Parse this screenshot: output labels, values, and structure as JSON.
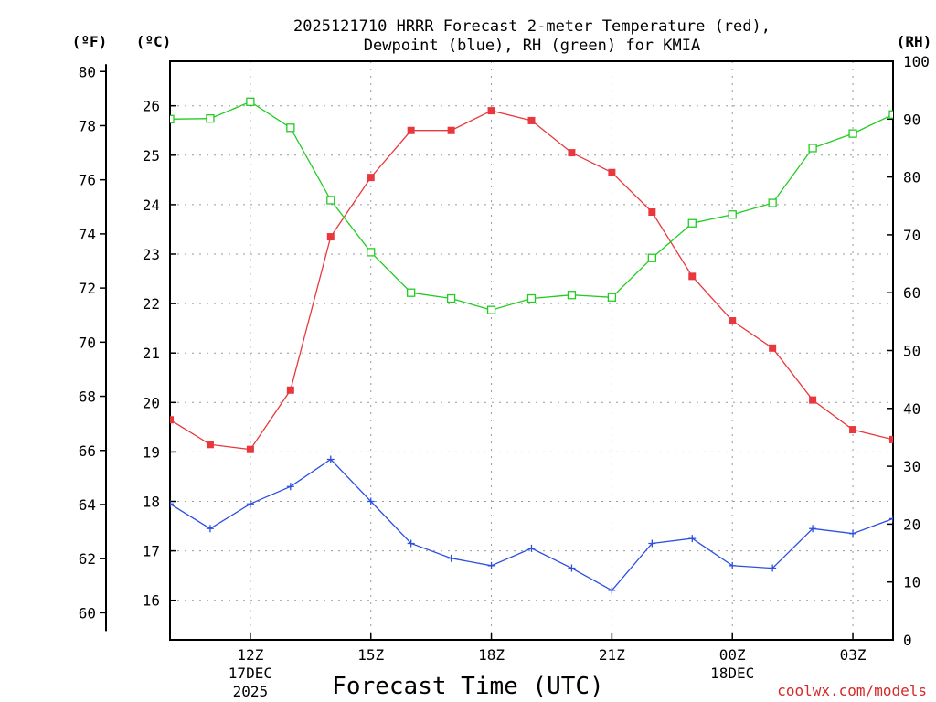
{
  "chart_data": {
    "type": "line",
    "title_line1": "2025121710 HRRR Forecast 2-meter Temperature (red),",
    "title_line2": "Dewpoint (blue), RH (green) for KMIA",
    "xlabel": "Forecast Time (UTC)",
    "credit": "coolwx.com/models",
    "credit_color": "#d42a2a",
    "x_hours_utc": [
      10,
      11,
      12,
      13,
      14,
      15,
      16,
      17,
      18,
      19,
      20,
      21,
      22,
      23,
      24,
      25,
      26,
      27,
      28
    ],
    "x_range": [
      10,
      28
    ],
    "x_ticks": [
      {
        "x": 12,
        "label": "12Z",
        "sub1": "17DEC",
        "sub2": "2025"
      },
      {
        "x": 15,
        "label": "15Z",
        "sub1": "",
        "sub2": ""
      },
      {
        "x": 18,
        "label": "18Z",
        "sub1": "",
        "sub2": ""
      },
      {
        "x": 21,
        "label": "21Z",
        "sub1": "",
        "sub2": ""
      },
      {
        "x": 24,
        "label": "00Z",
        "sub1": "18DEC",
        "sub2": ""
      },
      {
        "x": 27,
        "label": "03Z",
        "sub1": "",
        "sub2": ""
      }
    ],
    "left_outer_axis": {
      "unit_label": "(ºF)",
      "ylim": [
        59.0,
        80.38
      ],
      "ticks": [
        "60",
        "62",
        "64",
        "66",
        "68",
        "70",
        "72",
        "74",
        "76",
        "78",
        "80"
      ]
    },
    "left_inner_axis": {
      "unit_label": "(ºC)",
      "ylim": [
        15.2,
        26.9
      ],
      "ticks": [
        "16",
        "17",
        "18",
        "19",
        "20",
        "21",
        "22",
        "23",
        "24",
        "25",
        "26"
      ]
    },
    "right_axis": {
      "unit_label": "(RH)",
      "ylim": [
        0,
        100
      ],
      "ticks": [
        "0",
        "10",
        "20",
        "30",
        "40",
        "50",
        "60",
        "70",
        "80",
        "90",
        "100"
      ]
    },
    "series": [
      {
        "name": "2-meter Temperature",
        "unit": "C",
        "axis": "left_inner",
        "color": "#e8383d",
        "marker": "filled-square",
        "values": [
          19.65,
          19.15,
          19.05,
          20.25,
          23.35,
          24.55,
          25.5,
          25.5,
          25.9,
          25.7,
          25.05,
          24.65,
          23.85,
          22.55,
          21.65,
          21.1,
          20.05,
          19.45,
          19.25
        ]
      },
      {
        "name": "Dewpoint",
        "unit": "C",
        "axis": "left_inner",
        "color": "#2c4fe0",
        "marker": "plus",
        "values": [
          17.95,
          17.45,
          17.95,
          18.3,
          18.85,
          18.0,
          17.15,
          16.85,
          16.7,
          17.05,
          16.65,
          16.2,
          17.15,
          17.25,
          16.7,
          16.65,
          17.45,
          17.35,
          17.65
        ]
      },
      {
        "name": "RH",
        "unit": "%",
        "axis": "right",
        "color": "#22cc22",
        "marker": "open-square",
        "values": [
          90,
          90.1,
          93,
          88.5,
          76,
          67,
          60,
          59,
          57,
          59,
          59.6,
          59.2,
          66,
          72,
          73.5,
          75.5,
          85,
          87.5,
          90.8
        ]
      }
    ]
  }
}
